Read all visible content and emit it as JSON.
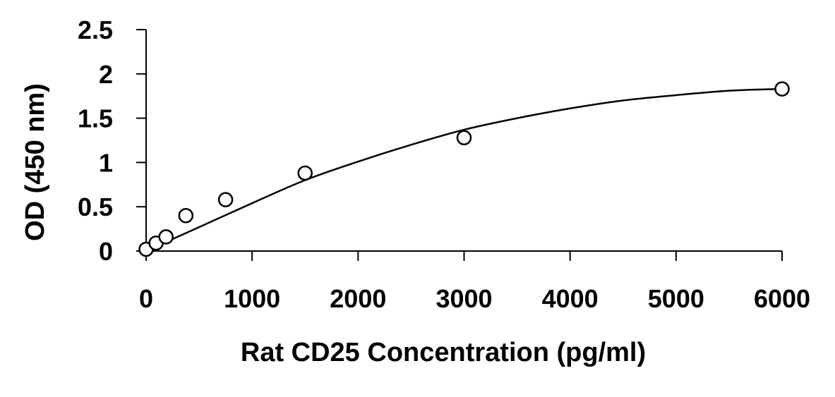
{
  "chart_data": {
    "type": "scatter",
    "title": "",
    "xlabel": "Rat CD25 Concentration (pg/ml)",
    "ylabel": "OD (450 nm)",
    "xlim": [
      0,
      6000
    ],
    "ylim": [
      0,
      2.5
    ],
    "xticks": [
      0,
      1000,
      2000,
      3000,
      4000,
      5000,
      6000
    ],
    "yticks": [
      0,
      0.5,
      1,
      1.5,
      2,
      2.5
    ],
    "xtick_labels": [
      "0",
      "1000",
      "2000",
      "3000",
      "4000",
      "5000",
      "6000"
    ],
    "ytick_labels": [
      "0",
      "0.5",
      "1",
      "1.5",
      "2",
      "2.5"
    ],
    "grid": false,
    "legend": "none",
    "series": [
      {
        "marker": "open-circle",
        "x": [
          0,
          94,
          188,
          375,
          750,
          1500,
          3000,
          6000
        ],
        "y": [
          0.02,
          0.09,
          0.16,
          0.4,
          0.58,
          0.88,
          1.28,
          1.83
        ]
      }
    ],
    "fit_curve": {
      "type": "smooth",
      "x": [
        0,
        500,
        1000,
        1500,
        2000,
        2500,
        3000,
        3500,
        4000,
        4500,
        5000,
        5500,
        6000
      ],
      "y": [
        0.0,
        0.27,
        0.54,
        0.8,
        1.01,
        1.2,
        1.37,
        1.5,
        1.61,
        1.7,
        1.76,
        1.81,
        1.83
      ]
    },
    "colors": {
      "ink": "#000000",
      "marker_fill": "#ffffff"
    }
  }
}
